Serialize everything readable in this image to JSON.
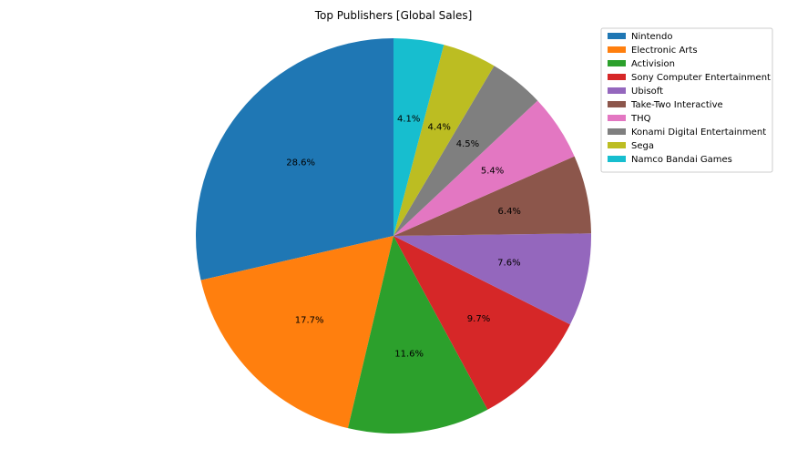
{
  "chart_data": {
    "type": "pie",
    "title": "Top Publishers [Global Sales]",
    "labels": [
      "Nintendo",
      "Electronic Arts",
      "Activision",
      "Sony Computer Entertainment",
      "Ubisoft",
      "Take-Two Interactive",
      "THQ",
      "Konami Digital Entertainment",
      "Sega",
      "Namco Bandai Games"
    ],
    "values": [
      28.6,
      17.7,
      11.6,
      9.7,
      7.6,
      6.4,
      5.4,
      4.5,
      4.4,
      4.1
    ],
    "value_labels": [
      "28.6%",
      "17.7%",
      "11.6%",
      "9.7%",
      "7.6%",
      "6.4%",
      "5.4%",
      "4.5%",
      "4.4%",
      "4.1%"
    ],
    "colors": [
      "#1f77b4",
      "#ff7f0e",
      "#2ca02c",
      "#d62728",
      "#9467bd",
      "#8c564b",
      "#e377c2",
      "#7f7f7f",
      "#bcbd22",
      "#17becf"
    ],
    "start_angle_deg": 90,
    "direction": "counterclockwise",
    "legend_position": "top-right"
  }
}
